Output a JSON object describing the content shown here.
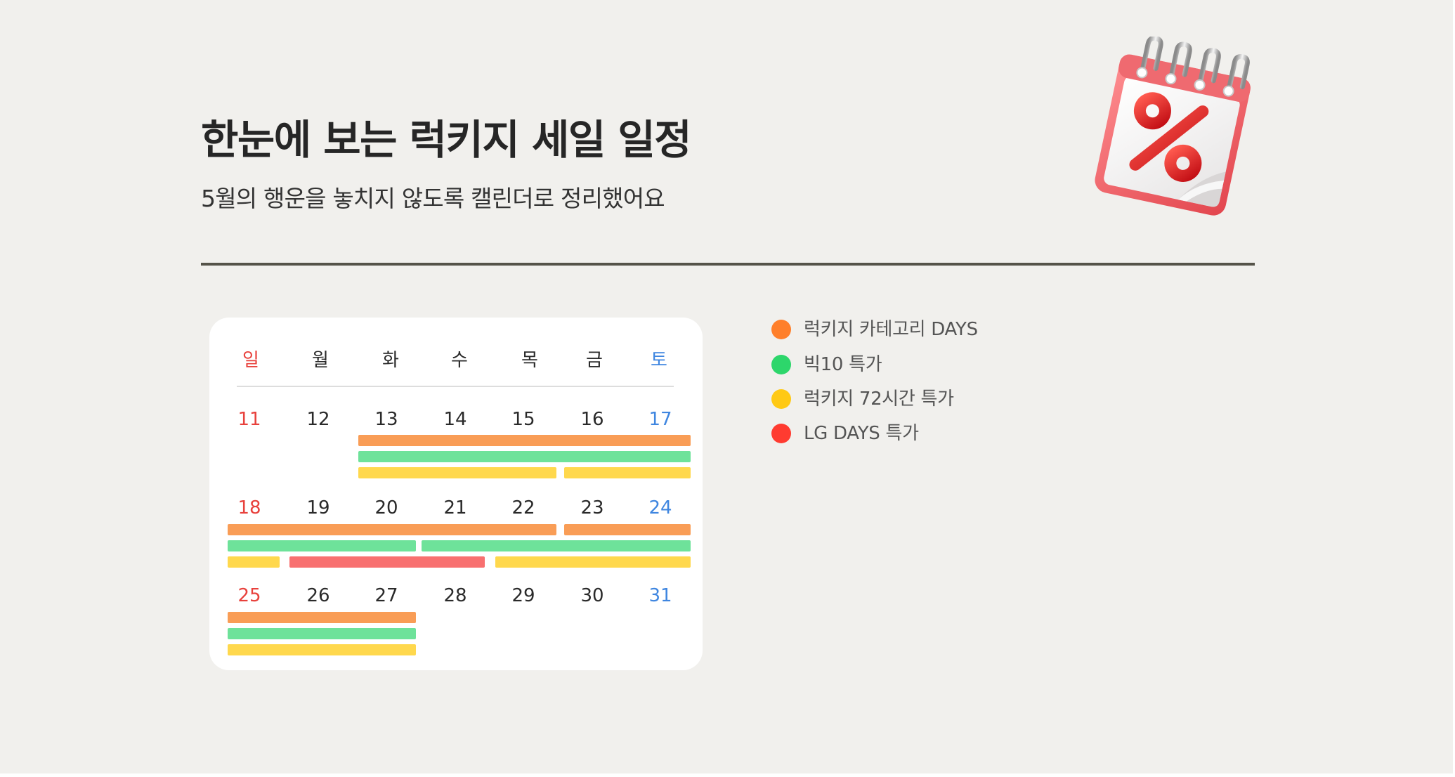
{
  "header": {
    "title": "한눈에 보는 럭키지 세일 일정",
    "subtitle": "5월의 행운을 놓치지 않도록 캘린더로 정리했어요",
    "icon": "sale-calendar-percent-icon"
  },
  "calendar": {
    "weekdays": [
      "일",
      "월",
      "화",
      "수",
      "목",
      "금",
      "토"
    ],
    "weeks": [
      [
        "11",
        "12",
        "13",
        "14",
        "15",
        "16",
        "17"
      ],
      [
        "18",
        "19",
        "20",
        "21",
        "22",
        "23",
        "24"
      ],
      [
        "25",
        "26",
        "27",
        "28",
        "29",
        "30",
        "31"
      ]
    ]
  },
  "legend": [
    {
      "label": "럭키지 카테고리 DAYS",
      "color": "#ff7f2a"
    },
    {
      "label": "빅10 특가",
      "color": "#2dd66b"
    },
    {
      "label": "럭키지 72시간 특가",
      "color": "#ffc914"
    },
    {
      "label": "LG DAYS 특가",
      "color": "#ff3b30"
    }
  ],
  "colors": {
    "background": "#f1f0ed",
    "sunday": "#e8413c",
    "saturday": "#3f86e0",
    "bar_orange": "#f99d56",
    "bar_green": "#6ee29a",
    "bar_yellow": "#ffd84d",
    "bar_red": "#f87070"
  }
}
